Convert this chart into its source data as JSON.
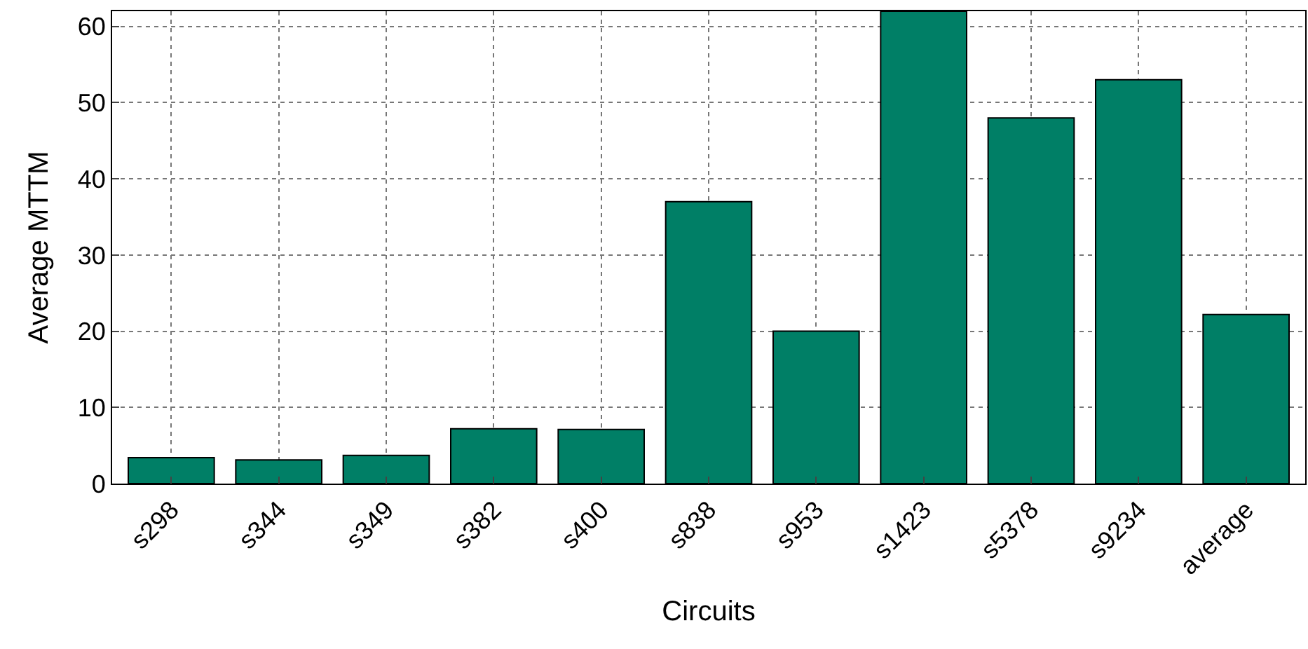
{
  "chart_data": {
    "type": "bar",
    "xlabel": "Circuits",
    "ylabel": "Average MTTM",
    "categories": [
      "s298",
      "s344",
      "s349",
      "s382",
      "s400",
      "s838",
      "s953",
      "s1423",
      "s5378",
      "s9234",
      "average"
    ],
    "values": [
      3.4,
      3.1,
      3.7,
      7.2,
      7.1,
      37,
      20,
      62,
      48,
      53,
      22.2
    ],
    "color": "#007f66",
    "ylim": [
      0,
      62
    ],
    "yticks": [
      0,
      10,
      20,
      30,
      40,
      50,
      60
    ],
    "grid": true
  }
}
